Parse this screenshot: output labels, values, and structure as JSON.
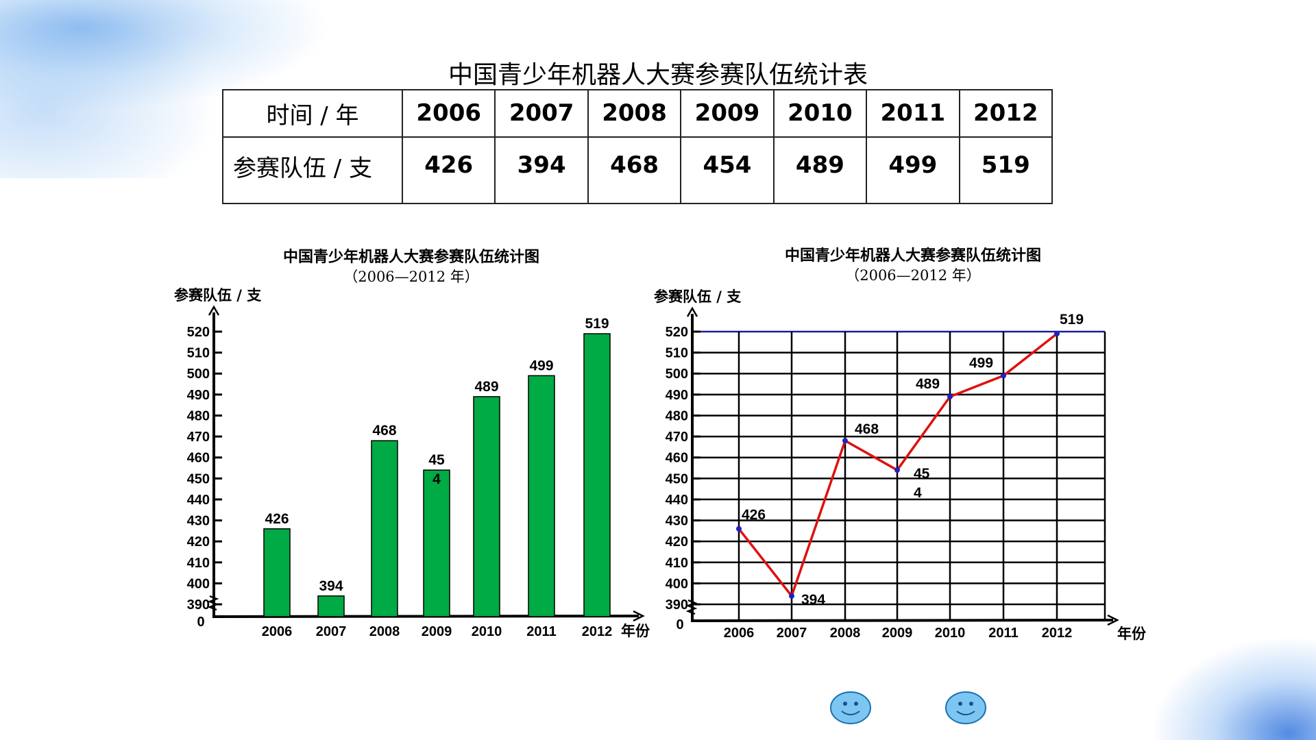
{
  "table": {
    "title": "中国青少年机器人大赛参赛队伍统计表",
    "row1_label": "时间   / 年",
    "row2_label": "参赛队伍   / 支",
    "years": [
      "2006",
      "2007",
      "2008",
      "2009",
      "2010",
      "2011",
      "2012"
    ],
    "values": [
      "426",
      "394",
      "468",
      "454",
      "489",
      "499",
      "519"
    ]
  },
  "chart_data": [
    {
      "type": "bar",
      "title": "中国青少年机器人大赛参赛队伍统计图",
      "subtitle": "（2006—2012 年）",
      "ylabel": "参赛队伍 / 支",
      "xlabel": "年份",
      "categories": [
        "2006",
        "2007",
        "2008",
        "2009",
        "2010",
        "2011",
        "2012"
      ],
      "values": [
        426,
        394,
        468,
        454,
        489,
        499,
        519
      ],
      "data_labels": [
        "426",
        "394",
        "468",
        "45\n4",
        "489",
        "499",
        "519"
      ],
      "y_ticks": [
        "0",
        "390",
        "400",
        "410",
        "420",
        "430",
        "440",
        "450",
        "460",
        "470",
        "480",
        "490",
        "500",
        "510",
        "520"
      ],
      "ylim": [
        390,
        520
      ],
      "axis_break": true,
      "grid": false,
      "bar_color": "#00aa44"
    },
    {
      "type": "line",
      "title": "中国青少年机器人大赛参赛队伍统计图",
      "subtitle": "（2006—2012 年）",
      "ylabel": "参赛队伍 / 支",
      "xlabel": "年份",
      "categories": [
        "2006",
        "2007",
        "2008",
        "2009",
        "2010",
        "2011",
        "2012"
      ],
      "values": [
        426,
        394,
        468,
        454,
        489,
        499,
        519
      ],
      "data_labels": [
        "426",
        "394",
        "468",
        "45\n4",
        "489",
        "499",
        "519"
      ],
      "y_ticks": [
        "0",
        "390",
        "400",
        "410",
        "420",
        "430",
        "440",
        "450",
        "460",
        "470",
        "480",
        "490",
        "500",
        "510",
        "520"
      ],
      "ylim": [
        390,
        520
      ],
      "axis_break": true,
      "grid": true,
      "line_color": "#e01010",
      "marker_color": "#2020c0",
      "top_grid_color": "#1a1aa0"
    }
  ],
  "icons": [
    "smiley-face-icon",
    "smiley-face-icon"
  ]
}
